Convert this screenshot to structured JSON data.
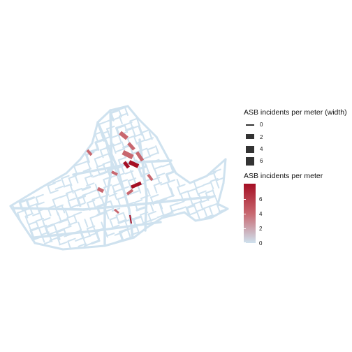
{
  "legend": {
    "width_title": "ASB incidents per meter (width)",
    "width_keys": [
      "0",
      "2",
      "4",
      "6"
    ],
    "color_title": "ASB incidents per meter",
    "color_ticks": [
      "6",
      "4",
      "2",
      "0"
    ]
  },
  "colors": {
    "low": "#cfe2ef",
    "mid": "#c8676f",
    "high": "#a50f24",
    "key": "#333333"
  }
}
